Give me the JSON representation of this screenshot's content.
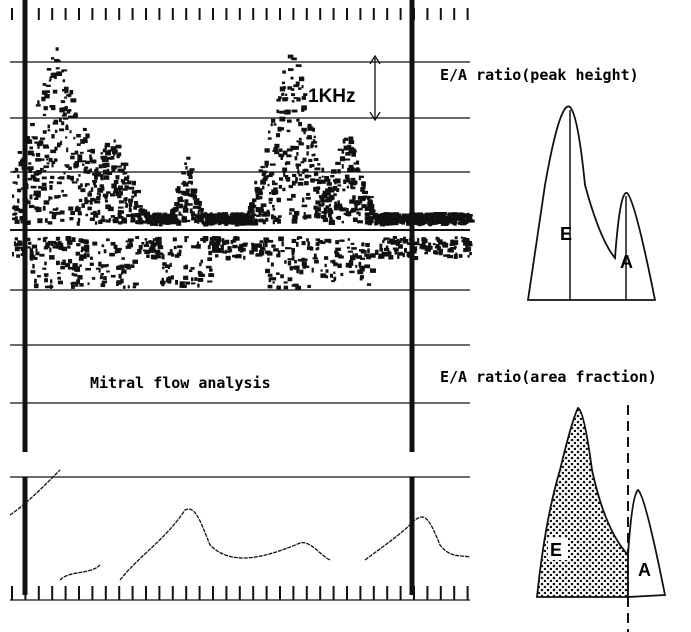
{
  "figure": {
    "scale_label": "1KHz",
    "panel_caption": "Mitral flow analysis",
    "peak_height": {
      "title": "E/A ratio(peak height)",
      "e_label": "E",
      "a_label": "A"
    },
    "area_fraction": {
      "title": "E/A ratio(area fraction)",
      "e_label": "E",
      "a_label": "A"
    }
  }
}
